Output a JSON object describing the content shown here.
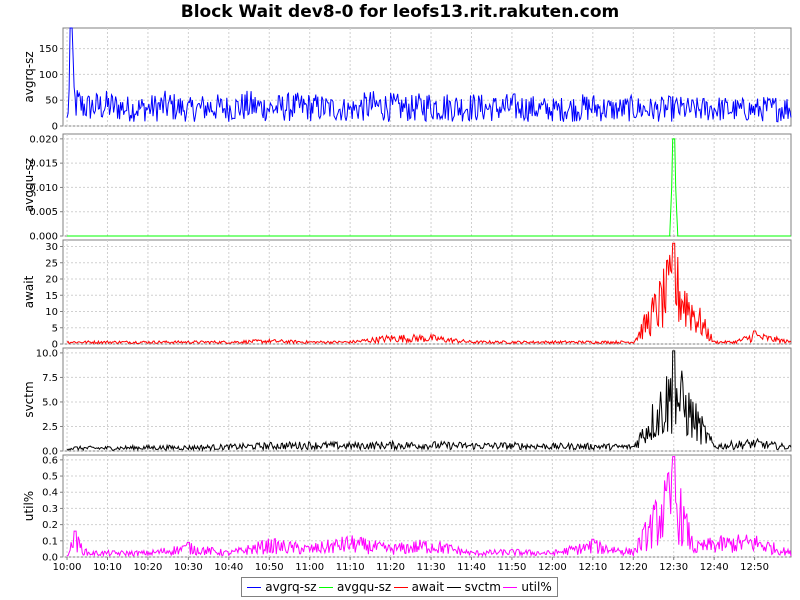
{
  "title": "Block Wait dev8-0 for leofs13.rit.rakuten.com",
  "legend": [
    {
      "label": "avgrq-sz",
      "color": "#0000ff"
    },
    {
      "label": "avgqu-sz",
      "color": "#00ff00"
    },
    {
      "label": "await",
      "color": "#ff0000"
    },
    {
      "label": "svctm",
      "color": "#000000"
    },
    {
      "label": "util%",
      "color": "#ff00ff"
    }
  ],
  "chart_data": {
    "type": "line",
    "title": "Block Wait dev8-0 for leofs13.rit.rakuten.com",
    "xlabel": "",
    "x_range": [
      "09:59",
      "12:59"
    ],
    "x_ticks": [
      "10:00",
      "10:10",
      "10:20",
      "10:30",
      "10:40",
      "10:50",
      "11:00",
      "11:10",
      "11:20",
      "11:30",
      "11:40",
      "11:50",
      "12:00",
      "12:10",
      "12:20",
      "12:30",
      "12:40",
      "12:50"
    ],
    "grid": true,
    "legend_position": "bottom",
    "panels": [
      {
        "ylabel": "avgrq-sz",
        "ylim": [
          0,
          190
        ],
        "y_ticks": [
          "0",
          "50",
          "100",
          "150"
        ],
        "series": [
          {
            "name": "avgrq-sz",
            "color": "#0000ff",
            "x": [
              "10:00",
              "10:01",
              "10:02",
              "10:05",
              "10:10",
              "10:15",
              "10:20",
              "10:25",
              "10:30",
              "10:35",
              "10:40",
              "10:45",
              "10:50",
              "10:55",
              "11:00",
              "11:05",
              "11:10",
              "11:15",
              "11:20",
              "11:25",
              "11:30",
              "11:35",
              "11:40",
              "11:45",
              "11:50",
              "11:55",
              "12:00",
              "12:05",
              "12:10",
              "12:15",
              "12:20",
              "12:25",
              "12:30",
              "12:35",
              "12:40",
              "12:45",
              "12:50",
              "12:55",
              "12:59"
            ],
            "values": [
              20,
              190,
              80,
              65,
              70,
              60,
              60,
              70,
              55,
              65,
              60,
              70,
              60,
              65,
              65,
              60,
              55,
              70,
              65,
              60,
              70,
              65,
              65,
              60,
              65,
              60,
              55,
              60,
              65,
              55,
              60,
              55,
              60,
              55,
              60,
              55,
              55,
              60,
              60
            ]
          }
        ]
      },
      {
        "ylabel": "avgqu-sz",
        "ylim": [
          0,
          0.021
        ],
        "y_ticks": [
          "0.000",
          "0.005",
          "0.010",
          "0.015",
          "0.020"
        ],
        "series": [
          {
            "name": "avgqu-sz",
            "color": "#00ff00",
            "x": [
              "10:00",
              "12:29",
              "12:30",
              "12:31",
              "12:59"
            ],
            "values": [
              0,
              0,
              0.02,
              0,
              0
            ]
          }
        ]
      },
      {
        "ylabel": "await",
        "ylim": [
          0,
          32
        ],
        "y_ticks": [
          "0",
          "5",
          "10",
          "15",
          "20",
          "25",
          "30"
        ],
        "series": [
          {
            "name": "await",
            "color": "#ff0000",
            "x": [
              "10:00",
              "10:10",
              "10:20",
              "10:30",
              "10:40",
              "10:50",
              "11:00",
              "11:10",
              "11:20",
              "11:30",
              "11:40",
              "11:50",
              "12:00",
              "12:10",
              "12:20",
              "12:30",
              "12:40",
              "12:45",
              "12:50",
              "12:59"
            ],
            "values": [
              1,
              1,
              1,
              1,
              1,
              1.5,
              1,
              1,
              3,
              3,
              1,
              1,
              1,
              1,
              1,
              31,
              1,
              1,
              4,
              1
            ]
          }
        ]
      },
      {
        "ylabel": "svctm",
        "ylim": [
          0,
          10.5
        ],
        "y_ticks": [
          "0.0",
          "2.5",
          "5.0",
          "7.5",
          "10.0"
        ],
        "series": [
          {
            "name": "svctm",
            "color": "#000000",
            "x": [
              "10:00",
              "10:10",
              "10:20",
              "10:30",
              "10:40",
              "10:50",
              "11:00",
              "11:10",
              "11:20",
              "11:30",
              "11:40",
              "11:50",
              "12:00",
              "12:10",
              "12:20",
              "12:30",
              "12:40",
              "12:50",
              "12:59"
            ],
            "values": [
              0.5,
              0.5,
              0.6,
              0.6,
              0.7,
              0.9,
              1.0,
              0.9,
              1.0,
              1.0,
              0.9,
              0.9,
              0.8,
              0.8,
              0.7,
              10.2,
              0.8,
              1.3,
              0.6
            ]
          }
        ]
      },
      {
        "ylabel": "util%",
        "ylim": [
          0,
          0.63
        ],
        "y_ticks": [
          "0.0",
          "0.1",
          "0.2",
          "0.3",
          "0.4",
          "0.5",
          "0.6"
        ],
        "series": [
          {
            "name": "util%",
            "color": "#ff00ff",
            "x": [
              "10:00",
              "10:02",
              "10:05",
              "10:10",
              "10:20",
              "10:30",
              "10:40",
              "10:50",
              "11:00",
              "11:10",
              "11:20",
              "11:30",
              "11:40",
              "11:50",
              "12:00",
              "12:10",
              "12:20",
              "12:30",
              "12:35",
              "12:40",
              "12:50",
              "12:59"
            ],
            "values": [
              0.03,
              0.16,
              0.04,
              0.04,
              0.04,
              0.09,
              0.04,
              0.12,
              0.08,
              0.14,
              0.08,
              0.12,
              0.04,
              0.05,
              0.04,
              0.11,
              0.05,
              0.62,
              0.09,
              0.13,
              0.15,
              0.04
            ]
          }
        ]
      }
    ]
  }
}
